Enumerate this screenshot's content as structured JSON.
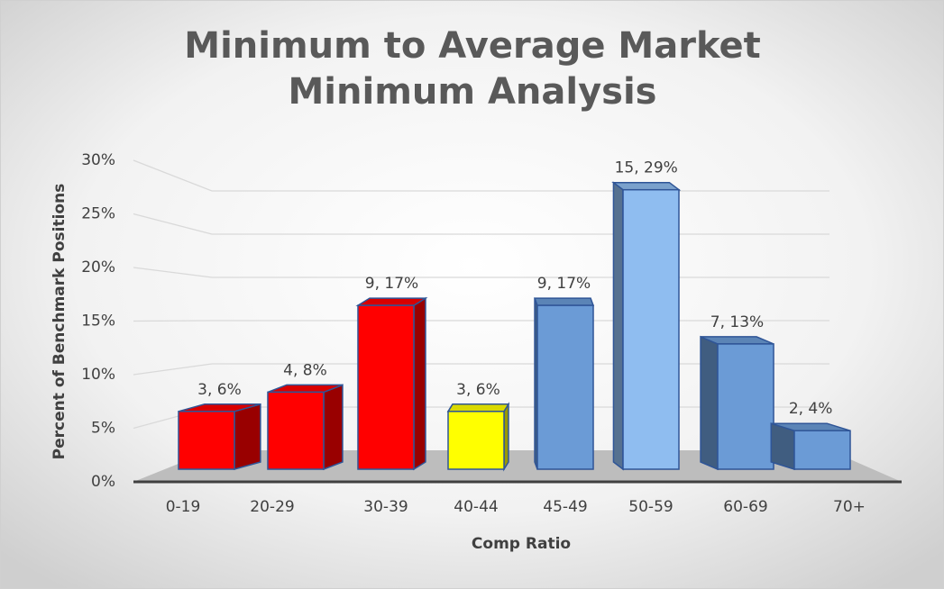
{
  "chart_data": {
    "type": "bar3d",
    "title": "Minimum to Average Market Minimum Analysis",
    "x_label": "Comp Ratio",
    "y_label": "Percent of Benchmark Positions",
    "categories": [
      "0-19",
      "20-29",
      "30-39",
      "40-44",
      "45-49",
      "50-59",
      "60-69",
      "70+"
    ],
    "values": [
      6,
      8,
      17,
      6,
      17,
      29,
      13,
      4
    ],
    "value_labels": [
      "3, 6%",
      "4, 8%",
      "9, 17%",
      "3, 6%",
      "9, 17%",
      "15, 29%",
      "7, 13%",
      "2, 4%"
    ],
    "colors": [
      "#ff0000",
      "#ff0000",
      "#ff0000",
      "#ffff00",
      "#6b9bd6",
      "#8fbdf0",
      "#6b9bd6",
      "#6b9bd6"
    ],
    "ylim": [
      0,
      30
    ],
    "yticks": [
      {
        "value": 0,
        "label": "0%"
      },
      {
        "value": 5,
        "label": "5%"
      },
      {
        "value": 10,
        "label": "10%"
      },
      {
        "value": 15,
        "label": "15%"
      },
      {
        "value": 20,
        "label": "20%"
      },
      {
        "value": 25,
        "label": "25%"
      },
      {
        "value": 30,
        "label": "30%"
      }
    ],
    "grid": true
  }
}
